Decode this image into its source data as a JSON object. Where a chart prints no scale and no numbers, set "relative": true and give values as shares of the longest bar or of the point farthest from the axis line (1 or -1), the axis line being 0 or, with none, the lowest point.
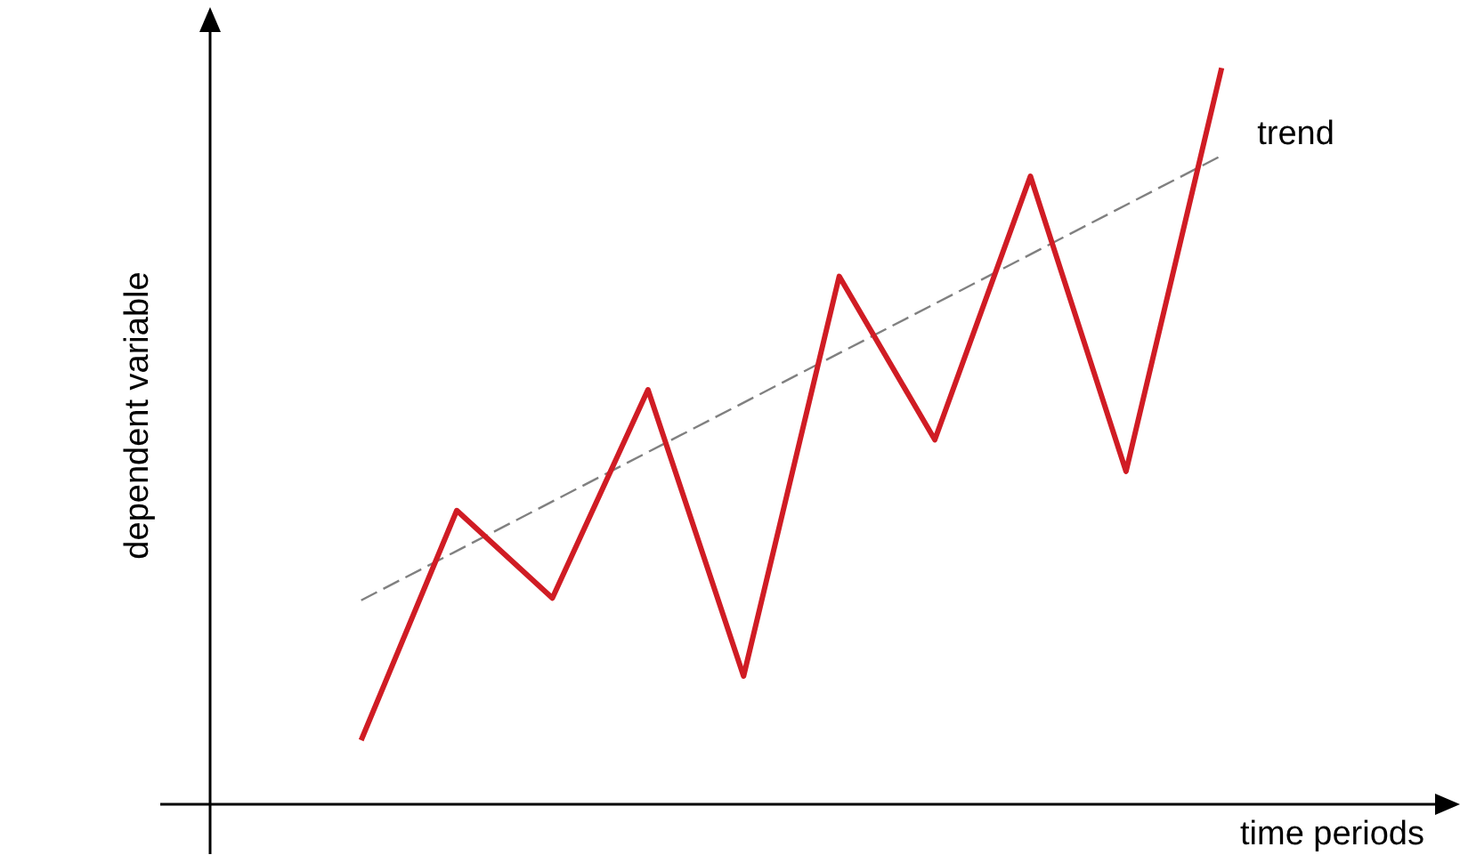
{
  "chart_data": {
    "type": "line",
    "relative": true,
    "xlabel": "time periods",
    "ylabel": "dependent variable",
    "categories": [
      null,
      null,
      null,
      null,
      null,
      null,
      null,
      null,
      null,
      null
    ],
    "series": [
      {
        "color": "#d01c24",
        "values": [
          0.087,
          0.399,
          0.28,
          0.563,
          0.174,
          0.717,
          0.495,
          0.853,
          0.452,
          1
        ]
      },
      {
        "name": "trend",
        "color": "#808080",
        "line_style": "dashed",
        "values": [
          0.277,
          null,
          null,
          null,
          null,
          null,
          null,
          null,
          null,
          0.881
        ]
      }
    ],
    "marker": "none",
    "legend": false
  }
}
